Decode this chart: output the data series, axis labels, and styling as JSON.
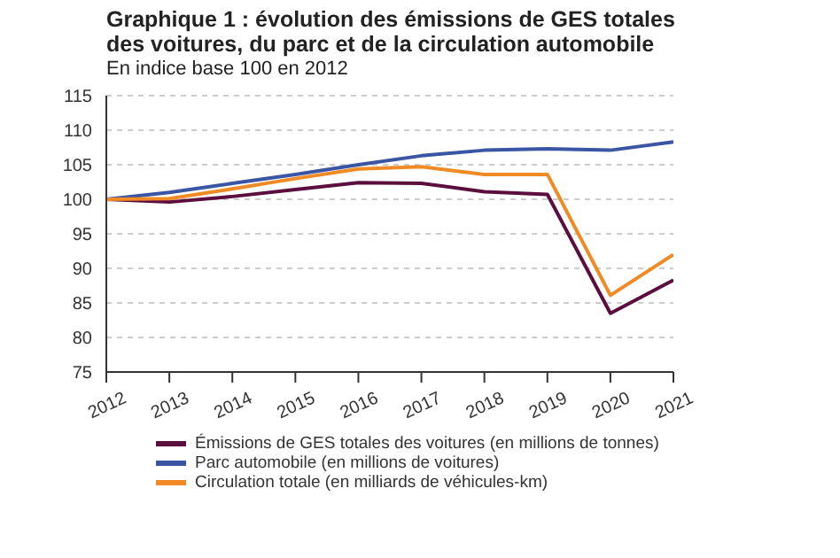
{
  "chart_data": {
    "type": "line",
    "title": "Graphique 1 : évolution des émissions de GES totales des voitures, du parc et de la circulation automobile",
    "subtitle": "En indice base 100 en 2012",
    "x": [
      2012,
      2013,
      2014,
      2015,
      2016,
      2017,
      2018,
      2019,
      2020,
      2021
    ],
    "xlim": [
      2012,
      2021
    ],
    "xticks": [
      2012,
      2013,
      2014,
      2015,
      2016,
      2017,
      2018,
      2019,
      2020,
      2021
    ],
    "ylim": [
      75,
      115
    ],
    "yticks": [
      75,
      80,
      85,
      90,
      95,
      100,
      105,
      110,
      115
    ],
    "grid": "y",
    "legend": "bottom",
    "marker": "none",
    "line_style": "solid",
    "series": [
      {
        "name": "Émissions de GES totales des voitures (en millions de tonnes)",
        "color": "#5c0f3f",
        "values": [
          100,
          99.6,
          100.4,
          101.4,
          102.4,
          102.3,
          101.1,
          100.7,
          83.5,
          88.3
        ]
      },
      {
        "name": "Parc automobile (en millions de voitures)",
        "color": "#3a55a4",
        "values": [
          100,
          101,
          102.3,
          103.6,
          105,
          106.3,
          107.1,
          107.3,
          107.1,
          108.3
        ]
      },
      {
        "name": "Circulation totale (en milliards de véhicules-km)",
        "color": "#f08a24",
        "values": [
          100,
          100.1,
          101.5,
          103,
          104.4,
          104.7,
          103.6,
          103.6,
          86.1,
          92
        ]
      }
    ]
  }
}
